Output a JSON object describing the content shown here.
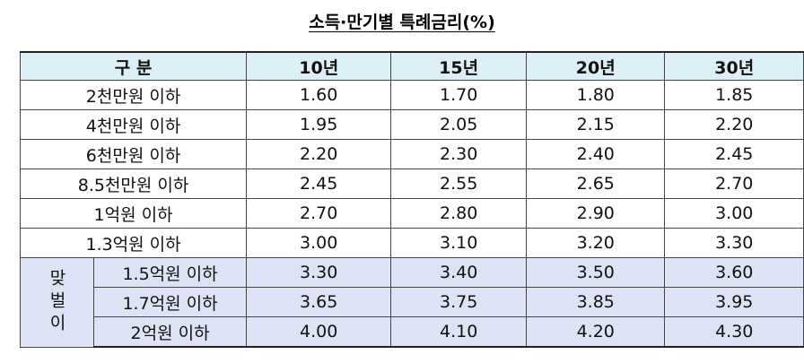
{
  "title": "소득·만기별 특례금리(%)",
  "table": {
    "header": [
      "구 분",
      "10년",
      "15년",
      "20년",
      "30년"
    ],
    "rows": [
      [
        "2천만원 이하",
        "1.60",
        "1.70",
        "1.80",
        "1.85"
      ],
      [
        "4천만원 이하",
        "1.95",
        "2.05",
        "2.15",
        "2.20"
      ],
      [
        "6천만원 이하",
        "2.20",
        "2.30",
        "2.40",
        "2.45"
      ],
      [
        "8.5천만원 이하",
        "2.45",
        "2.55",
        "2.65",
        "2.70"
      ],
      [
        "1억원 이하",
        "2.70",
        "2.80",
        "2.90",
        "3.00"
      ],
      [
        "1.3억원 이하",
        "3.00",
        "3.10",
        "3.20",
        "3.30"
      ]
    ],
    "couple_group": {
      "label": "맞벌이",
      "rows": [
        [
          "1.5억원 이하",
          "3.30",
          "3.40",
          "3.50",
          "3.60"
        ],
        [
          "1.7억원 이하",
          "3.65",
          "3.75",
          "3.85",
          "3.95"
        ],
        [
          "2억원 이하",
          "4.00",
          "4.10",
          "4.20",
          "4.30"
        ]
      ]
    }
  }
}
